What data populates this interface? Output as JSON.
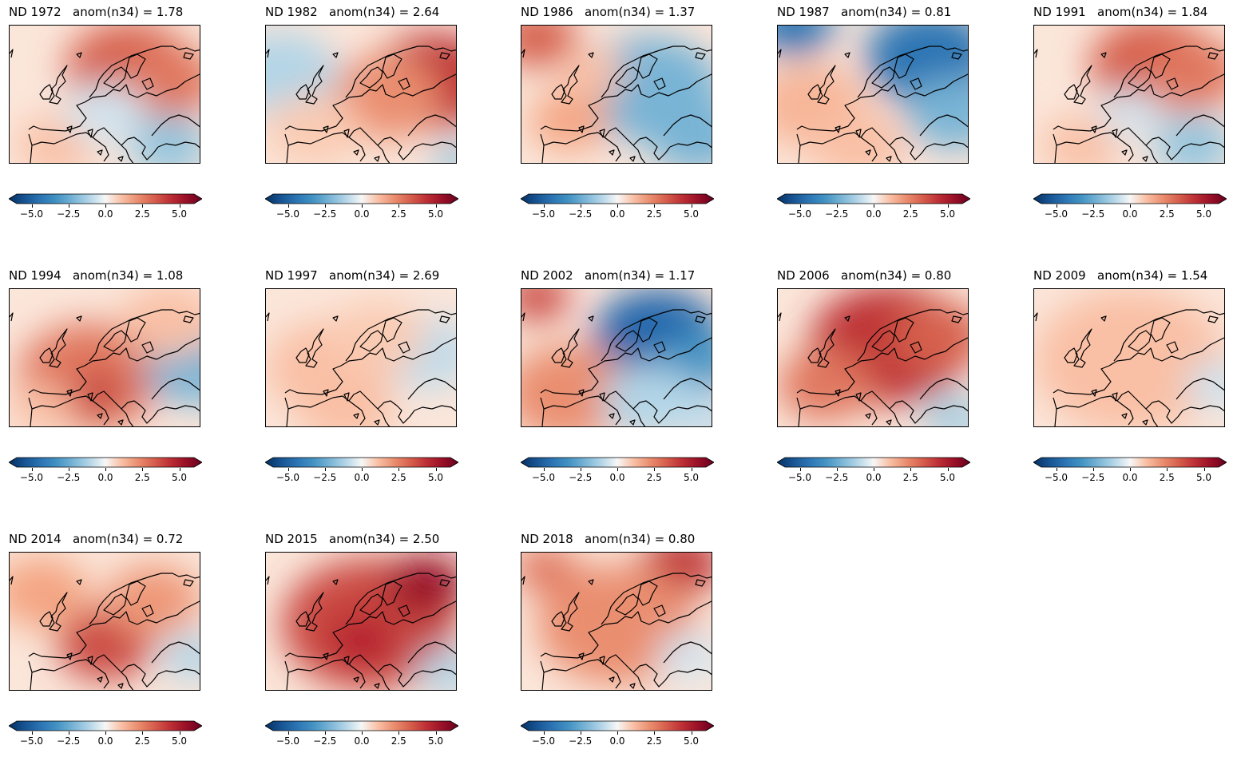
{
  "figure": {
    "colorbar": {
      "colormap": "RdBu_r",
      "range": [
        -6,
        6
      ],
      "extend": "both",
      "ticks": [
        -5.0,
        -2.5,
        0.0,
        2.5,
        5.0
      ],
      "tick_labels": [
        "−5.0",
        "−2.5",
        "0.0",
        "2.5",
        "5.0"
      ]
    },
    "panels": [
      {
        "title": "ND 1972   anom(n34) = 1.78",
        "pattern": "warm north-east, cool south-east"
      },
      {
        "title": "ND 1982   anom(n34) = 2.64",
        "pattern": "warm east, cool far west"
      },
      {
        "title": "ND 1986   anom(n34) = 1.37",
        "pattern": "cool east, warm far north-west"
      },
      {
        "title": "ND 1987   anom(n34) = 0.81",
        "pattern": "strong cool north-east, weak warm west"
      },
      {
        "title": "ND 1991   anom(n34) = 1.84",
        "pattern": "warm north-east, cool south-east"
      },
      {
        "title": "ND 1994   anom(n34) = 1.08",
        "pattern": "warm west-central, cool east"
      },
      {
        "title": "ND 1997   anom(n34) = 2.69",
        "pattern": "weak warm west, weak cool east"
      },
      {
        "title": "ND 2002   anom(n34) = 1.17",
        "pattern": "strong cool north-east, warm south-west"
      },
      {
        "title": "ND 2006   anom(n34) = 0.80",
        "pattern": "strong warm everywhere"
      },
      {
        "title": "ND 2009   anom(n34) = 1.54",
        "pattern": "weak warm everywhere"
      },
      {
        "title": "ND 2014   anom(n34) = 0.72",
        "pattern": "warm central Europe"
      },
      {
        "title": "ND 2015   anom(n34) = 2.50",
        "pattern": "strong warm everywhere"
      },
      {
        "title": "ND 2018   anom(n34) = 0.80",
        "pattern": "warm north, moderate warm elsewhere"
      }
    ]
  }
}
